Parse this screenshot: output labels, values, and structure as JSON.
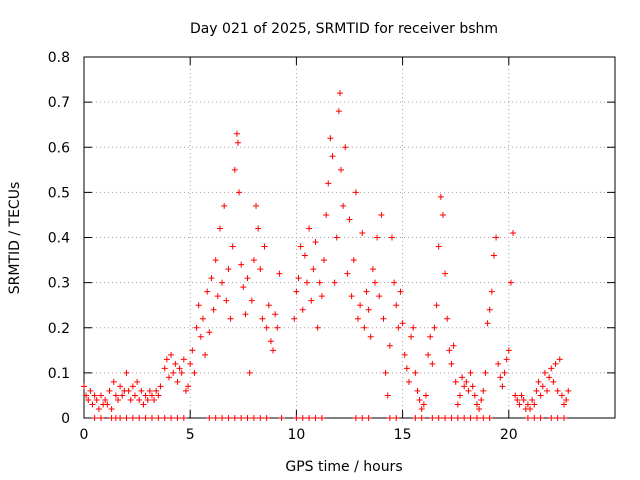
{
  "chart_data": {
    "type": "scatter",
    "title": "Day 021 of 2025, SRMTID for receiver bshm",
    "xlabel": "GPS time / hours",
    "ylabel": "SRMTID / TECUs",
    "xlim": [
      0,
      25
    ],
    "ylim": [
      0,
      0.8
    ],
    "xticks": [
      0,
      5,
      10,
      15,
      20
    ],
    "yticks": [
      0,
      0.1,
      0.2,
      0.3,
      0.4,
      0.5,
      0.6,
      0.7,
      0.8
    ],
    "xtick_labels": [
      "0",
      "5",
      "10",
      "15",
      "20"
    ],
    "ytick_labels": [
      "0",
      "0.1",
      "0.2",
      "0.3",
      "0.4",
      "0.5",
      "0.6",
      "0.7",
      "0.8"
    ],
    "grid": true,
    "marker": "+",
    "color": "#ff0000",
    "series": [
      {
        "name": "SRMTID",
        "points": [
          [
            0.0,
            0.07
          ],
          [
            0.1,
            0.05
          ],
          [
            0.2,
            0.04
          ],
          [
            0.3,
            0.06
          ],
          [
            0.4,
            0.03
          ],
          [
            0.5,
            0.05
          ],
          [
            0.6,
            0.04
          ],
          [
            0.7,
            0.02
          ],
          [
            0.8,
            0.05
          ],
          [
            0.9,
            0.03
          ],
          [
            1.0,
            0.04
          ],
          [
            1.1,
            0.03
          ],
          [
            1.2,
            0.06
          ],
          [
            1.3,
            0.02
          ],
          [
            1.4,
            0.08
          ],
          [
            1.5,
            0.05
          ],
          [
            1.6,
            0.04
          ],
          [
            1.7,
            0.07
          ],
          [
            1.8,
            0.05
          ],
          [
            1.9,
            0.06
          ],
          [
            2.0,
            0.1
          ],
          [
            2.1,
            0.06
          ],
          [
            2.2,
            0.04
          ],
          [
            2.3,
            0.07
          ],
          [
            2.4,
            0.05
          ],
          [
            2.5,
            0.08
          ],
          [
            2.6,
            0.04
          ],
          [
            2.7,
            0.06
          ],
          [
            2.8,
            0.03
          ],
          [
            2.9,
            0.05
          ],
          [
            3.0,
            0.04
          ],
          [
            3.1,
            0.06
          ],
          [
            3.2,
            0.05
          ],
          [
            3.3,
            0.04
          ],
          [
            3.4,
            0.06
          ],
          [
            3.5,
            0.05
          ],
          [
            3.6,
            0.07
          ],
          [
            3.8,
            0.11
          ],
          [
            3.9,
            0.13
          ],
          [
            4.0,
            0.09
          ],
          [
            4.1,
            0.14
          ],
          [
            4.2,
            0.1
          ],
          [
            4.3,
            0.12
          ],
          [
            4.4,
            0.08
          ],
          [
            4.5,
            0.11
          ],
          [
            4.6,
            0.1
          ],
          [
            4.7,
            0.13
          ],
          [
            4.8,
            0.06
          ],
          [
            4.9,
            0.07
          ],
          [
            5.0,
            0.12
          ],
          [
            5.1,
            0.15
          ],
          [
            5.2,
            0.1
          ],
          [
            5.3,
            0.2
          ],
          [
            5.4,
            0.25
          ],
          [
            5.5,
            0.18
          ],
          [
            5.6,
            0.22
          ],
          [
            5.7,
            0.14
          ],
          [
            5.8,
            0.28
          ],
          [
            5.9,
            0.19
          ],
          [
            6.0,
            0.31
          ],
          [
            6.1,
            0.24
          ],
          [
            6.2,
            0.35
          ],
          [
            6.3,
            0.27
          ],
          [
            6.4,
            0.42
          ],
          [
            6.5,
            0.3
          ],
          [
            6.6,
            0.47
          ],
          [
            6.7,
            0.26
          ],
          [
            6.8,
            0.33
          ],
          [
            6.9,
            0.22
          ],
          [
            7.0,
            0.38
          ],
          [
            7.1,
            0.55
          ],
          [
            7.2,
            0.63
          ],
          [
            7.25,
            0.61
          ],
          [
            7.3,
            0.5
          ],
          [
            7.4,
            0.34
          ],
          [
            7.5,
            0.29
          ],
          [
            7.6,
            0.23
          ],
          [
            7.7,
            0.31
          ],
          [
            7.8,
            0.1
          ],
          [
            7.9,
            0.26
          ],
          [
            8.0,
            0.35
          ],
          [
            8.1,
            0.47
          ],
          [
            8.2,
            0.42
          ],
          [
            8.3,
            0.33
          ],
          [
            8.4,
            0.22
          ],
          [
            8.5,
            0.38
          ],
          [
            8.6,
            0.2
          ],
          [
            8.7,
            0.25
          ],
          [
            8.8,
            0.17
          ],
          [
            8.9,
            0.15
          ],
          [
            9.0,
            0.23
          ],
          [
            9.1,
            0.2
          ],
          [
            9.2,
            0.32
          ],
          [
            9.9,
            0.22
          ],
          [
            10.0,
            0.28
          ],
          [
            10.1,
            0.31
          ],
          [
            10.2,
            0.38
          ],
          [
            10.3,
            0.24
          ],
          [
            10.4,
            0.36
          ],
          [
            10.5,
            0.3
          ],
          [
            10.6,
            0.42
          ],
          [
            10.7,
            0.26
          ],
          [
            10.8,
            0.33
          ],
          [
            10.9,
            0.39
          ],
          [
            11.0,
            0.2
          ],
          [
            11.1,
            0.3
          ],
          [
            11.2,
            0.27
          ],
          [
            11.3,
            0.35
          ],
          [
            11.4,
            0.45
          ],
          [
            11.5,
            0.52
          ],
          [
            11.6,
            0.62
          ],
          [
            11.7,
            0.58
          ],
          [
            11.8,
            0.3
          ],
          [
            11.9,
            0.4
          ],
          [
            12.0,
            0.68
          ],
          [
            12.05,
            0.72
          ],
          [
            12.1,
            0.55
          ],
          [
            12.2,
            0.47
          ],
          [
            12.3,
            0.6
          ],
          [
            12.4,
            0.32
          ],
          [
            12.5,
            0.44
          ],
          [
            12.6,
            0.27
          ],
          [
            12.7,
            0.35
          ],
          [
            12.8,
            0.5
          ],
          [
            12.9,
            0.22
          ],
          [
            13.0,
            0.25
          ],
          [
            13.1,
            0.41
          ],
          [
            13.2,
            0.2
          ],
          [
            13.3,
            0.28
          ],
          [
            13.4,
            0.24
          ],
          [
            13.5,
            0.18
          ],
          [
            13.6,
            0.33
          ],
          [
            13.7,
            0.3
          ],
          [
            13.8,
            0.4
          ],
          [
            13.9,
            0.27
          ],
          [
            14.0,
            0.45
          ],
          [
            14.1,
            0.22
          ],
          [
            14.2,
            0.1
          ],
          [
            14.3,
            0.05
          ],
          [
            14.4,
            0.16
          ],
          [
            14.5,
            0.4
          ],
          [
            14.6,
            0.3
          ],
          [
            14.7,
            0.25
          ],
          [
            14.8,
            0.2
          ],
          [
            14.9,
            0.28
          ],
          [
            15.0,
            0.21
          ],
          [
            15.1,
            0.14
          ],
          [
            15.2,
            0.11
          ],
          [
            15.3,
            0.08
          ],
          [
            15.4,
            0.18
          ],
          [
            15.5,
            0.2
          ],
          [
            15.6,
            0.1
          ],
          [
            15.7,
            0.06
          ],
          [
            15.8,
            0.04
          ],
          [
            15.9,
            0.02
          ],
          [
            16.0,
            0.03
          ],
          [
            16.1,
            0.05
          ],
          [
            16.2,
            0.14
          ],
          [
            16.3,
            0.18
          ],
          [
            16.4,
            0.12
          ],
          [
            16.5,
            0.2
          ],
          [
            16.6,
            0.25
          ],
          [
            16.7,
            0.38
          ],
          [
            16.8,
            0.49
          ],
          [
            16.9,
            0.45
          ],
          [
            17.0,
            0.32
          ],
          [
            17.1,
            0.22
          ],
          [
            17.2,
            0.15
          ],
          [
            17.3,
            0.12
          ],
          [
            17.4,
            0.16
          ],
          [
            17.5,
            0.08
          ],
          [
            17.6,
            0.03
          ],
          [
            17.7,
            0.05
          ],
          [
            17.8,
            0.09
          ],
          [
            17.9,
            0.07
          ],
          [
            18.0,
            0.08
          ],
          [
            18.1,
            0.06
          ],
          [
            18.2,
            0.1
          ],
          [
            18.3,
            0.07
          ],
          [
            18.4,
            0.05
          ],
          [
            18.5,
            0.03
          ],
          [
            18.6,
            0.02
          ],
          [
            18.7,
            0.04
          ],
          [
            18.8,
            0.06
          ],
          [
            18.9,
            0.1
          ],
          [
            19.0,
            0.21
          ],
          [
            19.1,
            0.24
          ],
          [
            19.2,
            0.28
          ],
          [
            19.3,
            0.36
          ],
          [
            19.4,
            0.4
          ],
          [
            19.5,
            0.12
          ],
          [
            19.6,
            0.09
          ],
          [
            19.7,
            0.07
          ],
          [
            19.8,
            0.1
          ],
          [
            19.9,
            0.13
          ],
          [
            20.0,
            0.15
          ],
          [
            20.1,
            0.3
          ],
          [
            20.2,
            0.41
          ],
          [
            20.3,
            0.05
          ],
          [
            20.4,
            0.04
          ],
          [
            20.5,
            0.03
          ],
          [
            20.6,
            0.05
          ],
          [
            20.7,
            0.04
          ],
          [
            20.8,
            0.02
          ],
          [
            20.9,
            0.03
          ],
          [
            21.0,
            0.02
          ],
          [
            21.1,
            0.04
          ],
          [
            21.2,
            0.03
          ],
          [
            21.3,
            0.06
          ],
          [
            21.4,
            0.08
          ],
          [
            21.5,
            0.05
          ],
          [
            21.6,
            0.07
          ],
          [
            21.7,
            0.1
          ],
          [
            21.8,
            0.06
          ],
          [
            21.9,
            0.09
          ],
          [
            22.0,
            0.11
          ],
          [
            22.1,
            0.08
          ],
          [
            22.2,
            0.12
          ],
          [
            22.3,
            0.06
          ],
          [
            22.4,
            0.13
          ],
          [
            22.5,
            0.05
          ],
          [
            22.6,
            0.03
          ],
          [
            22.7,
            0.04
          ],
          [
            22.8,
            0.06
          ],
          [
            0.5,
            0
          ],
          [
            0.8,
            0
          ],
          [
            1.3,
            0
          ],
          [
            1.5,
            0
          ],
          [
            1.7,
            0
          ],
          [
            2.0,
            0
          ],
          [
            2.3,
            0
          ],
          [
            2.6,
            0
          ],
          [
            2.9,
            0
          ],
          [
            3.2,
            0
          ],
          [
            3.5,
            0
          ],
          [
            3.8,
            0
          ],
          [
            4.1,
            0
          ],
          [
            4.4,
            0
          ],
          [
            4.7,
            0
          ],
          [
            5.9,
            0
          ],
          [
            6.2,
            0
          ],
          [
            6.5,
            0
          ],
          [
            6.8,
            0
          ],
          [
            7.1,
            0
          ],
          [
            7.4,
            0
          ],
          [
            7.7,
            0
          ],
          [
            8.0,
            0
          ],
          [
            8.3,
            0
          ],
          [
            8.6,
            0
          ],
          [
            9.3,
            0
          ],
          [
            10.0,
            0
          ],
          [
            10.3,
            0
          ],
          [
            10.6,
            0
          ],
          [
            10.9,
            0
          ],
          [
            11.2,
            0
          ],
          [
            12.8,
            0
          ],
          [
            13.1,
            0
          ],
          [
            13.4,
            0
          ],
          [
            14.4,
            0
          ],
          [
            14.7,
            0
          ],
          [
            15.6,
            0
          ],
          [
            15.9,
            0
          ],
          [
            16.4,
            0
          ],
          [
            16.7,
            0
          ],
          [
            17.0,
            0
          ],
          [
            17.3,
            0
          ],
          [
            17.6,
            0
          ],
          [
            17.9,
            0
          ],
          [
            18.2,
            0
          ],
          [
            18.5,
            0
          ],
          [
            18.8,
            0
          ],
          [
            19.1,
            0
          ],
          [
            20.9,
            0
          ],
          [
            21.2,
            0
          ],
          [
            21.5,
            0
          ],
          [
            22.0,
            0
          ],
          [
            22.3,
            0
          ],
          [
            22.6,
            0
          ]
        ]
      }
    ]
  }
}
